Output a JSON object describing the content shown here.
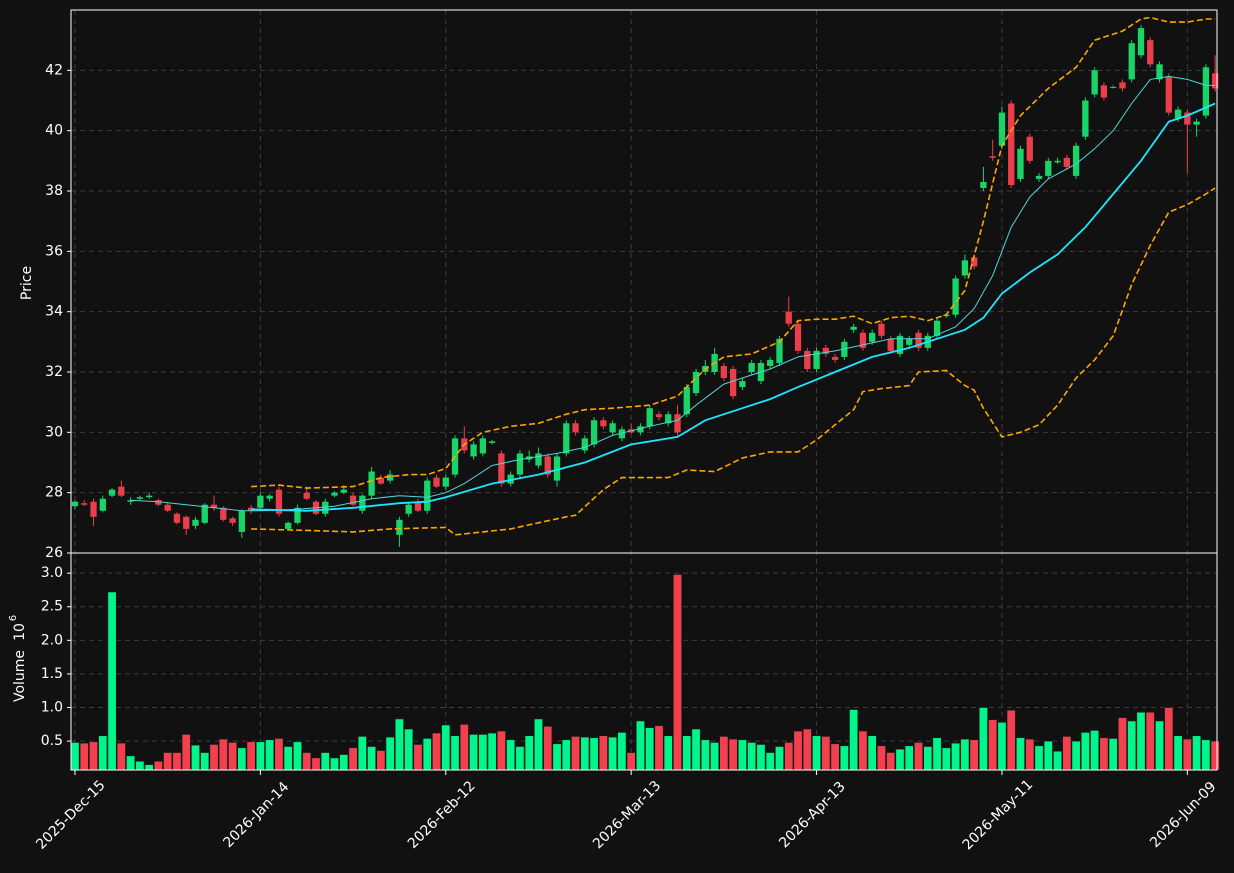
{
  "chart_data": {
    "type": "candlestick",
    "ylabel": "Price",
    "xlim": [
      -0.43,
      123.2
    ],
    "xticks": [
      {
        "value": 0,
        "label": "2025-Dec-15"
      },
      {
        "value": 20,
        "label": "2026-Jan-14"
      },
      {
        "value": 40,
        "label": "2026-Feb-12"
      },
      {
        "value": 60,
        "label": "2026-Mar-13"
      },
      {
        "value": 80,
        "label": "2026-Apr-13"
      },
      {
        "value": 100,
        "label": "2026-May-11"
      },
      {
        "value": 120,
        "label": "2026-Jun-09"
      }
    ],
    "ylim": [
      26,
      44
    ],
    "yticks": [
      26,
      28,
      30,
      32,
      34,
      36,
      38,
      40,
      42
    ],
    "grid": true,
    "up_color": "#19d468",
    "down_color": "#ea3f4b",
    "volume_up_color": "#00f58a",
    "volume_down_color": "#f2404f",
    "open": [
      27.55,
      27.65,
      27.7,
      27.4,
      27.9,
      28.2,
      27.7,
      27.8,
      27.85,
      27.75,
      27.6,
      27.3,
      27.2,
      26.9,
      27.0,
      27.6,
      27.5,
      27.15,
      26.7,
      27.5,
      27.5,
      27.8,
      28.1,
      26.8,
      27.0,
      28.0,
      27.7,
      27.3,
      27.9,
      28.0,
      27.9,
      27.4,
      27.9,
      28.5,
      28.4,
      26.6,
      27.3,
      27.7,
      27.4,
      28.5,
      28.2,
      28.6,
      29.8,
      29.2,
      29.3,
      29.65,
      29.3,
      28.3,
      28.6,
      29.1,
      28.9,
      29.2,
      28.4,
      29.3,
      30.3,
      29.4,
      29.6,
      30.4,
      30.0,
      29.8,
      30.1,
      30.0,
      30.2,
      30.6,
      30.3,
      30.6,
      30.6,
      31.3,
      32.0,
      32.0,
      32.2,
      32.1,
      31.5,
      32.0,
      31.7,
      32.2,
      32.3,
      34.0,
      33.6,
      32.7,
      32.1,
      32.8,
      32.5,
      32.5,
      33.4,
      33.3,
      33.0,
      33.6,
      33.1,
      32.6,
      32.9,
      33.3,
      32.8,
      33.2,
      33.85,
      33.9,
      35.2,
      35.8,
      38.1,
      39.15,
      39.5,
      40.9,
      38.4,
      39.8,
      38.4,
      38.5,
      38.95,
      39.1,
      38.5,
      39.8,
      41.2,
      41.5,
      41.45,
      41.6,
      41.7,
      42.5,
      43.0,
      41.7,
      41.8,
      40.4,
      40.6,
      40.2,
      40.5,
      41.9
    ],
    "high": [
      27.75,
      27.75,
      27.8,
      27.9,
      28.15,
      28.4,
      27.85,
      27.9,
      28.0,
      27.8,
      27.65,
      27.35,
      27.25,
      27.2,
      27.65,
      27.9,
      27.55,
      27.2,
      27.45,
      27.6,
      28.0,
      27.95,
      28.2,
      27.05,
      27.6,
      28.2,
      27.75,
      27.8,
      28.05,
      28.25,
      28.0,
      27.95,
      28.85,
      28.6,
      28.75,
      27.2,
      27.7,
      27.8,
      28.5,
      28.6,
      28.6,
      29.9,
      30.2,
      29.7,
      29.9,
      29.75,
      29.4,
      28.7,
      29.4,
      29.4,
      29.5,
      29.3,
      29.3,
      30.4,
      30.4,
      29.9,
      30.5,
      30.5,
      30.4,
      30.2,
      30.3,
      30.3,
      30.9,
      30.7,
      30.7,
      30.9,
      31.6,
      32.1,
      32.4,
      32.8,
      32.3,
      32.2,
      31.8,
      32.4,
      32.4,
      32.5,
      33.2,
      34.5,
      33.7,
      32.8,
      32.8,
      32.9,
      32.6,
      33.1,
      33.6,
      33.4,
      33.4,
      33.7,
      33.2,
      33.3,
      33.2,
      33.4,
      33.3,
      33.8,
      33.95,
      35.2,
      35.9,
      35.9,
      38.8,
      39.7,
      40.8,
      41.0,
      39.5,
      39.9,
      38.6,
      39.1,
      39.1,
      39.2,
      39.6,
      41.1,
      42.1,
      41.6,
      41.5,
      41.7,
      43.0,
      43.5,
      43.1,
      42.3,
      41.9,
      40.8,
      40.7,
      40.4,
      42.2,
      42.5
    ],
    "low": [
      27.45,
      27.55,
      26.9,
      27.35,
      27.85,
      27.85,
      27.6,
      27.75,
      27.8,
      27.55,
      27.35,
      26.95,
      26.6,
      26.8,
      26.95,
      27.4,
      27.05,
      26.9,
      26.5,
      27.3,
      27.45,
      27.7,
      27.2,
      26.75,
      26.95,
      27.75,
      27.25,
      27.2,
      27.85,
      27.95,
      27.55,
      27.3,
      27.8,
      28.25,
      28.3,
      26.2,
      27.2,
      27.35,
      27.3,
      28.15,
      28.1,
      28.5,
      29.3,
      29.1,
      29.2,
      29.6,
      28.2,
      28.2,
      28.5,
      29.0,
      28.8,
      28.5,
      28.2,
      29.2,
      29.9,
      29.3,
      29.5,
      30.1,
      29.9,
      29.7,
      29.95,
      29.9,
      30.1,
      30.4,
      30.2,
      29.9,
      30.5,
      31.2,
      31.9,
      31.9,
      31.7,
      31.1,
      31.4,
      31.9,
      31.6,
      32.1,
      32.2,
      33.5,
      32.6,
      32.0,
      32.0,
      32.5,
      32.3,
      32.4,
      33.3,
      32.7,
      32.9,
      33.1,
      32.6,
      32.5,
      32.8,
      32.7,
      32.7,
      33.1,
      33.8,
      33.8,
      35.1,
      35.4,
      38.0,
      39.0,
      39.4,
      38.1,
      38.3,
      38.9,
      38.3,
      38.4,
      38.9,
      38.7,
      38.4,
      39.7,
      41.1,
      41.0,
      41.4,
      41.3,
      41.6,
      42.4,
      42.1,
      41.6,
      40.5,
      40.3,
      38.6,
      39.8,
      40.4,
      41.3
    ],
    "close": [
      27.7,
      27.6,
      27.2,
      27.8,
      28.1,
      27.9,
      27.75,
      27.85,
      27.9,
      27.6,
      27.4,
      27.0,
      26.8,
      27.1,
      27.6,
      27.5,
      27.1,
      27.0,
      27.4,
      27.4,
      27.9,
      27.9,
      27.3,
      27.0,
      27.5,
      27.8,
      27.3,
      27.7,
      28.0,
      28.1,
      27.6,
      27.9,
      28.7,
      28.3,
      28.6,
      27.1,
      27.6,
      27.4,
      28.4,
      28.2,
      28.5,
      29.8,
      29.4,
      29.6,
      29.8,
      29.7,
      28.3,
      28.6,
      29.3,
      29.2,
      29.3,
      28.6,
      29.2,
      30.3,
      30.0,
      29.8,
      30.4,
      30.2,
      30.3,
      30.1,
      30.0,
      30.2,
      30.8,
      30.5,
      30.6,
      30.0,
      31.5,
      32.0,
      32.2,
      32.6,
      31.8,
      31.2,
      31.7,
      32.3,
      32.3,
      32.4,
      33.1,
      33.6,
      32.7,
      32.1,
      32.7,
      32.6,
      32.4,
      33.0,
      33.5,
      32.8,
      33.3,
      33.2,
      32.7,
      33.2,
      33.1,
      32.8,
      33.2,
      33.7,
      33.9,
      35.1,
      35.7,
      35.5,
      38.3,
      39.1,
      40.6,
      38.2,
      39.4,
      39.0,
      38.5,
      39.0,
      39.0,
      38.8,
      39.5,
      41.0,
      42.0,
      41.1,
      41.45,
      41.4,
      42.9,
      43.4,
      42.2,
      42.2,
      40.6,
      40.7,
      40.2,
      40.3,
      42.1,
      41.4
    ],
    "volume_axis": {
      "label": "Volume",
      "scale_base": "10",
      "scale_exponent": "6",
      "ylim": [
        0.07,
        3.3
      ],
      "yticks": [
        0.5,
        {
          "value": 1,
          "label": "1.0"
        },
        1.5,
        {
          "value": 2,
          "label": "2.0"
        },
        2.5,
        {
          "value": 3,
          "label": "3.0"
        }
      ]
    },
    "volume": [
      0.48,
      0.47,
      0.49,
      0.58,
      2.72,
      0.47,
      0.28,
      0.2,
      0.15,
      0.2,
      0.33,
      0.33,
      0.6,
      0.44,
      0.33,
      0.45,
      0.53,
      0.48,
      0.4,
      0.49,
      0.49,
      0.52,
      0.54,
      0.42,
      0.49,
      0.33,
      0.25,
      0.33,
      0.25,
      0.3,
      0.4,
      0.57,
      0.42,
      0.36,
      0.56,
      0.83,
      0.68,
      0.45,
      0.54,
      0.62,
      0.74,
      0.58,
      0.75,
      0.6,
      0.6,
      0.62,
      0.65,
      0.52,
      0.42,
      0.58,
      0.83,
      0.72,
      0.46,
      0.52,
      0.57,
      0.56,
      0.55,
      0.58,
      0.56,
      0.63,
      0.33,
      0.8,
      0.7,
      0.73,
      0.58,
      2.98,
      0.58,
      0.68,
      0.52,
      0.48,
      0.57,
      0.53,
      0.52,
      0.48,
      0.45,
      0.33,
      0.42,
      0.48,
      0.65,
      0.68,
      0.58,
      0.57,
      0.46,
      0.43,
      0.97,
      0.65,
      0.58,
      0.43,
      0.33,
      0.38,
      0.43,
      0.48,
      0.42,
      0.55,
      0.4,
      0.47,
      0.53,
      0.52,
      1.0,
      0.82,
      0.78,
      0.96,
      0.55,
      0.53,
      0.43,
      0.5,
      0.35,
      0.57,
      0.5,
      0.63,
      0.66,
      0.55,
      0.54,
      0.85,
      0.8,
      0.93,
      0.93,
      0.8,
      1.0,
      0.58,
      0.53,
      0.58,
      0.52,
      0.5
    ],
    "overlays": [
      {
        "color": "#4fd6d6",
        "width": 1,
        "dash": false,
        "x": [
          6,
          9,
          12,
          15,
          18,
          20,
          24,
          28,
          32,
          35,
          38,
          40,
          42,
          45,
          48,
          50,
          52,
          55,
          58,
          60,
          62,
          65,
          67,
          70,
          72,
          75,
          78,
          80,
          82,
          85,
          88,
          90,
          92,
          95,
          97,
          99,
          101,
          103,
          105,
          108,
          110,
          112,
          114,
          116,
          118,
          120,
          122,
          123
        ],
        "values": [
          27.75,
          27.7,
          27.6,
          27.5,
          27.4,
          27.4,
          27.45,
          27.55,
          27.8,
          27.9,
          27.85,
          28.0,
          28.3,
          28.9,
          29.1,
          29.2,
          29.3,
          29.5,
          29.9,
          30.05,
          30.2,
          30.4,
          30.9,
          31.6,
          31.8,
          32.1,
          32.5,
          32.6,
          32.7,
          32.9,
          33.1,
          33.1,
          33.1,
          33.5,
          34.1,
          35.2,
          36.8,
          37.8,
          38.4,
          38.9,
          39.4,
          40.0,
          40.9,
          41.7,
          41.8,
          41.7,
          41.5,
          41.5
        ]
      },
      {
        "color": "#1ee6ff",
        "width": 1.8,
        "dash": false,
        "x": [
          19,
          25,
          30,
          35,
          38,
          40,
          45,
          50,
          55,
          60,
          65,
          68,
          72,
          75,
          78,
          82,
          86,
          90,
          93,
          96,
          98,
          100,
          103,
          106,
          109,
          112,
          115,
          118,
          120,
          123
        ],
        "values": [
          27.45,
          27.4,
          27.5,
          27.65,
          27.7,
          27.85,
          28.3,
          28.6,
          29.0,
          29.6,
          29.85,
          30.4,
          30.8,
          31.1,
          31.5,
          32.0,
          32.5,
          32.8,
          33.1,
          33.4,
          33.8,
          34.6,
          35.3,
          35.9,
          36.8,
          37.9,
          39.0,
          40.3,
          40.5,
          40.9
        ]
      },
      {
        "color": "#ffa500",
        "width": 1.6,
        "dash": true,
        "x": [
          19,
          22,
          25,
          30,
          33,
          36,
          38,
          40,
          42,
          44,
          47,
          50,
          53,
          55,
          58,
          62,
          65,
          68,
          70,
          73,
          76,
          78,
          80,
          82,
          84,
          86,
          88,
          90,
          92,
          94,
          96,
          98,
          100,
          102,
          105,
          108,
          110,
          113,
          115,
          116,
          118,
          120,
          122,
          123
        ],
        "values": [
          28.2,
          28.25,
          28.15,
          28.2,
          28.5,
          28.6,
          28.6,
          28.8,
          29.6,
          30.0,
          30.2,
          30.3,
          30.6,
          30.75,
          30.8,
          30.9,
          31.2,
          32.1,
          32.5,
          32.6,
          33.0,
          33.7,
          33.75,
          33.75,
          33.85,
          33.6,
          33.8,
          33.85,
          33.7,
          33.9,
          34.7,
          37.0,
          39.5,
          40.5,
          41.4,
          42.1,
          43.0,
          43.3,
          43.7,
          43.75,
          43.6,
          43.6,
          43.7,
          43.7
        ]
      },
      {
        "color": "#ffa500",
        "width": 1.6,
        "dash": true,
        "x": [
          19,
          25,
          30,
          34,
          40,
          41,
          44,
          47,
          50,
          53,
          54,
          57,
          59,
          64,
          66,
          69,
          72,
          75,
          78,
          80,
          82,
          84,
          85,
          87,
          90,
          91,
          94,
          96,
          97,
          98,
          100,
          102,
          104,
          106,
          108,
          110,
          112,
          114,
          116,
          118,
          120,
          122,
          123
        ],
        "values": [
          26.8,
          26.75,
          26.7,
          26.8,
          26.85,
          26.6,
          26.7,
          26.8,
          27.0,
          27.2,
          27.25,
          28.1,
          28.5,
          28.5,
          28.75,
          28.7,
          29.15,
          29.35,
          29.35,
          29.75,
          30.25,
          30.75,
          31.35,
          31.45,
          31.55,
          32.0,
          32.05,
          31.55,
          31.4,
          30.8,
          29.85,
          30.0,
          30.25,
          30.9,
          31.8,
          32.4,
          33.2,
          34.9,
          36.2,
          37.3,
          37.55,
          37.9,
          38.1
        ]
      }
    ]
  }
}
